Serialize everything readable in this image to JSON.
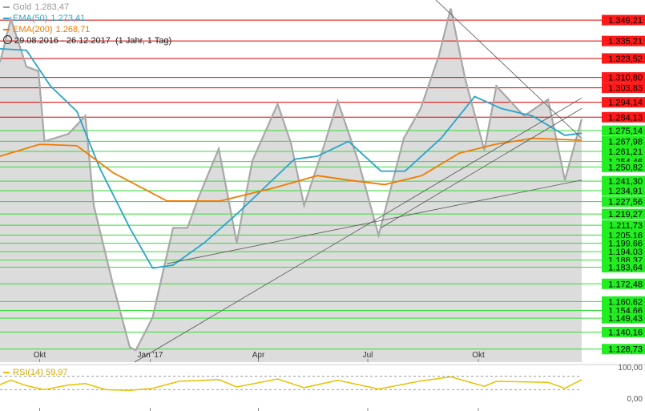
{
  "legend": {
    "gold": {
      "name": "Gold",
      "value": "1.283,47",
      "color": "#9a9a9a"
    },
    "ema50": {
      "name": "EMA(50)",
      "value": "1.273,41",
      "color": "#2aa4c8"
    },
    "ema200": {
      "name": "EMA(200)",
      "value": "1.268,71",
      "color": "#f07b00"
    },
    "period": {
      "range": "29.08.2016 - 26.12.2017",
      "info": "(1 Jahr, 1 Tag)"
    }
  },
  "rsi": {
    "name": "RSI(14)",
    "value": "59,97",
    "color": "#e8c000",
    "scale_labels": [
      "100,00",
      "0,00"
    ]
  },
  "chart_data": {
    "type": "area",
    "x_range": [
      "2016-08-29",
      "2017-12-26"
    ],
    "x_ticks": [
      "Okt",
      "Jan '17",
      "Apr",
      "Jul",
      "Okt"
    ],
    "ylim": [
      1120,
      1360
    ],
    "series": [
      {
        "name": "Gold",
        "color": "#9a9a9a",
        "points": [
          [
            "2016-08-29",
            1321
          ],
          [
            "2016-09-07",
            1350
          ],
          [
            "2016-09-20",
            1318
          ],
          [
            "2016-09-30",
            1315
          ],
          [
            "2016-10-05",
            1268
          ],
          [
            "2016-10-25",
            1273
          ],
          [
            "2016-11-08",
            1285
          ],
          [
            "2016-11-15",
            1225
          ],
          [
            "2016-12-01",
            1172
          ],
          [
            "2016-12-15",
            1130
          ],
          [
            "2016-12-20",
            1128
          ],
          [
            "2017-01-03",
            1150
          ],
          [
            "2017-01-20",
            1210
          ],
          [
            "2017-02-01",
            1210
          ],
          [
            "2017-02-10",
            1230
          ],
          [
            "2017-02-27",
            1263
          ],
          [
            "2017-03-14",
            1200
          ],
          [
            "2017-03-27",
            1255
          ],
          [
            "2017-04-17",
            1293
          ],
          [
            "2017-04-28",
            1267
          ],
          [
            "2017-05-09",
            1225
          ],
          [
            "2017-05-26",
            1266
          ],
          [
            "2017-06-06",
            1295
          ],
          [
            "2017-06-23",
            1255
          ],
          [
            "2017-07-10",
            1205
          ],
          [
            "2017-07-31",
            1270
          ],
          [
            "2017-08-14",
            1290
          ],
          [
            "2017-08-29",
            1325
          ],
          [
            "2017-09-08",
            1357
          ],
          [
            "2017-09-20",
            1310
          ],
          [
            "2017-10-06",
            1262
          ],
          [
            "2017-10-16",
            1305
          ],
          [
            "2017-11-08",
            1285
          ],
          [
            "2017-11-28",
            1296
          ],
          [
            "2017-12-12",
            1242
          ],
          [
            "2017-12-26",
            1283
          ]
        ]
      },
      {
        "name": "EMA(50)",
        "color": "#2aa4c8",
        "points": [
          [
            "2016-08-29",
            1330
          ],
          [
            "2016-09-20",
            1329
          ],
          [
            "2016-10-10",
            1305
          ],
          [
            "2016-11-01",
            1288
          ],
          [
            "2016-11-20",
            1250
          ],
          [
            "2016-12-15",
            1210
          ],
          [
            "2017-01-03",
            1183
          ],
          [
            "2017-01-20",
            1185
          ],
          [
            "2017-02-15",
            1200
          ],
          [
            "2017-03-15",
            1220
          ],
          [
            "2017-04-10",
            1240
          ],
          [
            "2017-05-01",
            1256
          ],
          [
            "2017-05-20",
            1258
          ],
          [
            "2017-06-15",
            1268
          ],
          [
            "2017-07-12",
            1248
          ],
          [
            "2017-08-01",
            1248
          ],
          [
            "2017-08-31",
            1270
          ],
          [
            "2017-09-28",
            1298
          ],
          [
            "2017-10-20",
            1290
          ],
          [
            "2017-11-15",
            1285
          ],
          [
            "2017-12-12",
            1272
          ],
          [
            "2017-12-26",
            1273.41
          ]
        ]
      },
      {
        "name": "EMA(200)",
        "color": "#f07b00",
        "points": [
          [
            "2016-08-29",
            1258
          ],
          [
            "2016-10-01",
            1266
          ],
          [
            "2016-11-01",
            1265
          ],
          [
            "2016-12-01",
            1247
          ],
          [
            "2017-01-15",
            1228
          ],
          [
            "2017-02-28",
            1228
          ],
          [
            "2017-04-15",
            1237
          ],
          [
            "2017-05-20",
            1245
          ],
          [
            "2017-06-15",
            1242
          ],
          [
            "2017-07-15",
            1239
          ],
          [
            "2017-08-15",
            1245
          ],
          [
            "2017-09-15",
            1260
          ],
          [
            "2017-10-15",
            1266
          ],
          [
            "2017-11-15",
            1270
          ],
          [
            "2017-12-26",
            1268.71
          ]
        ]
      }
    ],
    "trendlines": [
      {
        "from": [
          "2016-12-19",
          1120
        ],
        "to": [
          "2017-12-26",
          1297
        ]
      },
      {
        "from": [
          "2017-01-15",
          1186
        ],
        "to": [
          "2017-12-26",
          1242
        ]
      },
      {
        "from": [
          "2017-07-12",
          1210
        ],
        "to": [
          "2017-12-26",
          1290
        ]
      },
      {
        "from": [
          "2017-08-25",
          1364
        ],
        "to": [
          "2017-12-26",
          1270
        ]
      }
    ],
    "resistance_levels": [
      1349.21,
      1335.21,
      1323.52,
      1310.8,
      1303.83,
      1294.14,
      1284.13
    ],
    "support_levels": [
      1275.14,
      1267.98,
      1261.21,
      1254.46,
      1250.82,
      1241.3,
      1234.91,
      1227.56,
      1219.27,
      1211.73,
      1205.16,
      1199.66,
      1194.03,
      1188.37,
      1183.64,
      1172.48,
      1160.62,
      1154.66,
      1149.43,
      1140.16,
      1128.73
    ],
    "level_labels": {
      "resistance": [
        "1.349,21",
        "1.335,21",
        "1.323,52",
        "1.310,80",
        "1.303,83",
        "1.294,14",
        "1.284,13"
      ],
      "support": [
        "1.275,14",
        "1.267,98",
        "1.261,21",
        "1.254,46",
        "1.250,82",
        "1.241,30",
        "1.234,91",
        "1.227,56",
        "1.219,27",
        "1.211,73",
        "1.205,16",
        "1.199,66",
        "1.194,03",
        "1.188,37",
        "1.183,64",
        "1.172,48",
        "1.160,62",
        "1.154,66",
        "1.149,43",
        "1.140,16",
        "1.128,73"
      ]
    },
    "rsi_series": [
      [
        "2016-08-29",
        45
      ],
      [
        "2016-09-07",
        58
      ],
      [
        "2016-09-20",
        42
      ],
      [
        "2016-10-05",
        30
      ],
      [
        "2016-10-25",
        44
      ],
      [
        "2016-11-08",
        48
      ],
      [
        "2016-11-25",
        30
      ],
      [
        "2016-12-15",
        28
      ],
      [
        "2017-01-03",
        34
      ],
      [
        "2017-01-25",
        55
      ],
      [
        "2017-02-27",
        60
      ],
      [
        "2017-03-14",
        38
      ],
      [
        "2017-04-17",
        62
      ],
      [
        "2017-05-09",
        36
      ],
      [
        "2017-06-06",
        58
      ],
      [
        "2017-07-10",
        32
      ],
      [
        "2017-08-14",
        56
      ],
      [
        "2017-09-08",
        68
      ],
      [
        "2017-10-06",
        40
      ],
      [
        "2017-10-16",
        55
      ],
      [
        "2017-11-28",
        52
      ],
      [
        "2017-12-12",
        34
      ],
      [
        "2017-12-26",
        59.97
      ]
    ],
    "rsi_ylim": [
      0,
      100
    ],
    "rsi_guides": [
      70,
      30
    ]
  }
}
